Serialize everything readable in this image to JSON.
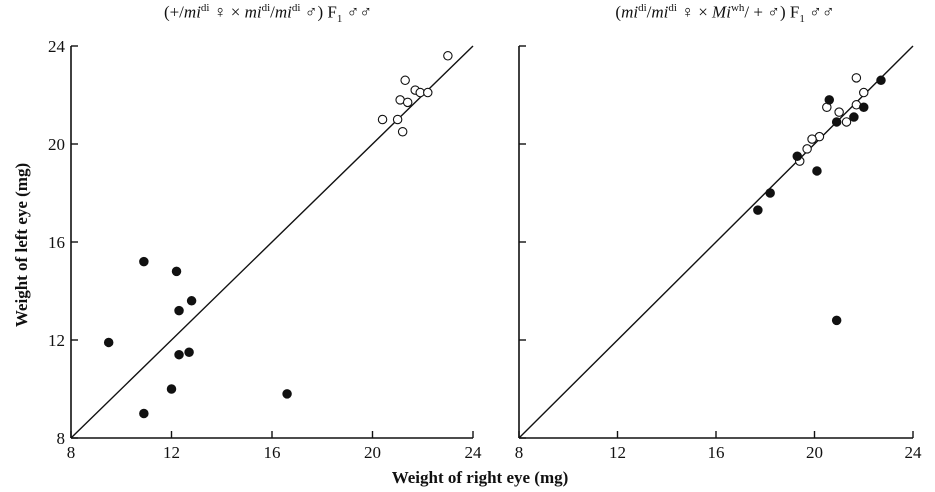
{
  "xlabel": "Weight of right eye (mg)",
  "ylabel": "Weight of left eye (mg)",
  "colors": {
    "ink": "#111111",
    "open_fill": "#ffffff"
  },
  "chart_data": [
    {
      "type": "scatter",
      "title_parts": [
        "(+/",
        "mi",
        "di",
        " ♀ × ",
        "mi",
        "di",
        "/",
        "mi",
        "di",
        " ♂) F",
        "1",
        " ♂♂"
      ],
      "xlim": [
        8,
        24
      ],
      "ylim": [
        8,
        24
      ],
      "xticks": [
        "8",
        "12",
        "16",
        "20",
        "24"
      ],
      "yticks": [
        "8",
        "12",
        "16",
        "20",
        "24"
      ],
      "reference_line": "y = x",
      "series": [
        {
          "marker": "open-circle",
          "points": [
            [
              23.0,
              23.6
            ],
            [
              21.3,
              22.6
            ],
            [
              21.7,
              22.2
            ],
            [
              21.9,
              22.1
            ],
            [
              22.2,
              22.1
            ],
            [
              21.1,
              21.8
            ],
            [
              21.4,
              21.7
            ],
            [
              20.4,
              21.0
            ],
            [
              21.0,
              21.0
            ],
            [
              21.2,
              20.5
            ]
          ]
        },
        {
          "marker": "filled-circle",
          "points": [
            [
              10.9,
              15.2
            ],
            [
              12.2,
              14.8
            ],
            [
              12.8,
              13.6
            ],
            [
              12.3,
              13.2
            ],
            [
              9.5,
              11.9
            ],
            [
              12.3,
              11.4
            ],
            [
              12.7,
              11.5
            ],
            [
              12.0,
              10.0
            ],
            [
              16.6,
              9.8
            ],
            [
              10.9,
              9.0
            ]
          ]
        }
      ]
    },
    {
      "type": "scatter",
      "title_parts": [
        "(",
        "mi",
        "di",
        "/",
        "mi",
        "di",
        " ♀ × ",
        "Mi",
        "wh",
        "/ + ♂) F",
        "1",
        " ♂♂"
      ],
      "xlim": [
        8,
        24
      ],
      "ylim": [
        8,
        24
      ],
      "xticks": [
        "8",
        "12",
        "16",
        "20",
        "24"
      ],
      "yticks": [
        "",
        "",
        "",
        "",
        ""
      ],
      "reference_line": "y = x",
      "series": [
        {
          "marker": "open-circle",
          "points": [
            [
              21.7,
              22.7
            ],
            [
              22.0,
              22.1
            ],
            [
              21.7,
              21.6
            ],
            [
              20.5,
              21.5
            ],
            [
              21.0,
              21.3
            ],
            [
              21.3,
              20.9
            ],
            [
              20.2,
              20.3
            ],
            [
              19.9,
              20.2
            ],
            [
              19.7,
              19.8
            ],
            [
              19.4,
              19.3
            ]
          ]
        },
        {
          "marker": "filled-circle",
          "points": [
            [
              22.7,
              22.6
            ],
            [
              20.6,
              21.8
            ],
            [
              22.0,
              21.5
            ],
            [
              21.6,
              21.1
            ],
            [
              20.9,
              20.9
            ],
            [
              19.3,
              19.5
            ],
            [
              20.1,
              18.9
            ],
            [
              18.2,
              18.0
            ],
            [
              17.7,
              17.3
            ],
            [
              20.9,
              12.8
            ]
          ]
        }
      ]
    }
  ]
}
